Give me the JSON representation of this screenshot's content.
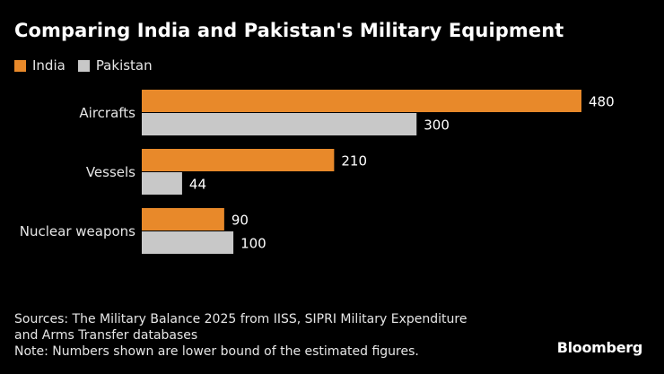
{
  "chart_data": {
    "type": "bar",
    "orientation": "horizontal",
    "title": "Comparing India and Pakistan's Military Equipment",
    "categories": [
      "Aircrafts",
      "Vessels",
      "Nuclear weapons"
    ],
    "series": [
      {
        "name": "India",
        "color": "#e8892a",
        "values": [
          480,
          210,
          90
        ]
      },
      {
        "name": "Pakistan",
        "color": "#c8c8c8",
        "values": [
          300,
          44,
          100
        ]
      }
    ],
    "xlim": [
      0,
      480
    ],
    "legend_position": "top-left",
    "grid": false
  },
  "footer": {
    "source_line1": "Sources: The Military Balance 2025 from IISS, SIPRI Military Expenditure",
    "source_line2": "and Arms Transfer databases",
    "note": "Note: Numbers shown are lower bound of the estimated figures."
  },
  "brand": "Bloomberg"
}
